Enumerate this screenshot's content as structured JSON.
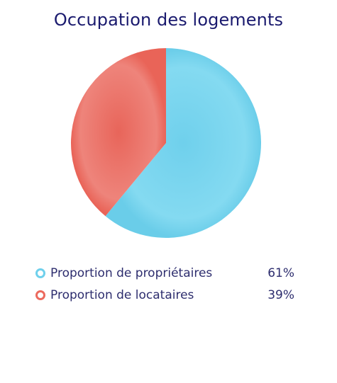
{
  "chart_data": {
    "type": "pie",
    "title": "Occupation des logements",
    "slices": [
      {
        "label": "Proportion de propriétaires",
        "value": 61,
        "display": "61%",
        "color": "#6fd0ec"
      },
      {
        "label": "Proportion de locataires",
        "value": 39,
        "display": "39%",
        "color": "#ec6a5e"
      }
    ],
    "legend_position": "bottom"
  }
}
